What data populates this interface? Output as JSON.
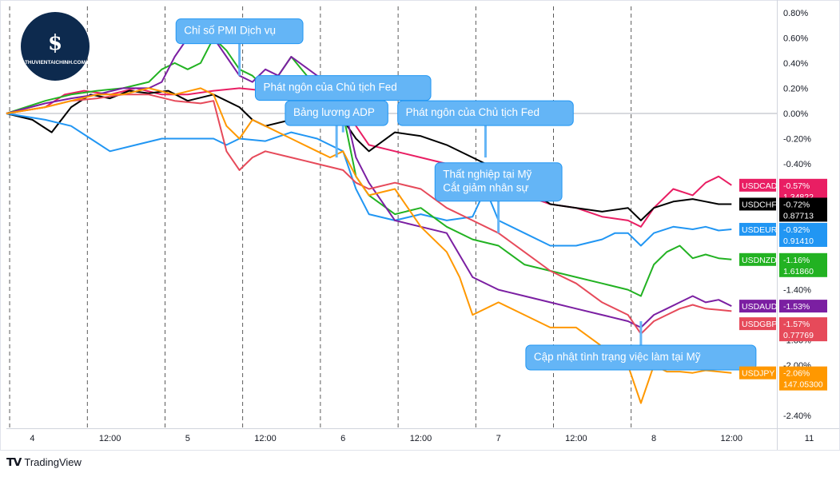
{
  "brand": {
    "footer_label": "TradingView",
    "watermark_text": "THUVIENTAICHINH.COM",
    "watermark_glyph": "$"
  },
  "chart_data": {
    "type": "line",
    "title": "",
    "xlabel": "",
    "ylabel": "",
    "y_unit": "%",
    "ylim": [
      -2.5,
      0.85
    ],
    "y_ticks": [
      "0.80%",
      "0.60%",
      "0.40%",
      "0.20%",
      "0.00%",
      "-0.20%",
      "-0.40%",
      "-1.40%",
      "-1.80%",
      "-2.00%",
      "-2.40%"
    ],
    "y_tick_values": [
      0.8,
      0.6,
      0.4,
      0.2,
      0.0,
      -0.2,
      -0.4,
      -1.4,
      -1.8,
      -2.0,
      -2.4
    ],
    "x_ticks": [
      "4",
      "12:00",
      "5",
      "12:00",
      "6",
      "12:00",
      "7",
      "12:00",
      "8",
      "12:00",
      "11"
    ],
    "x_tick_times": [
      0,
      12,
      24,
      36,
      48,
      60,
      72,
      84,
      96,
      108,
      120
    ],
    "x_unit": "hours since start of day 4",
    "xlim": [
      -4,
      115
    ],
    "zero_line": 0,
    "session_separators": [
      -3.5,
      8.5,
      20.5,
      32.5,
      44.5,
      56.5,
      68.5,
      80.5,
      92.5
    ],
    "series": [
      {
        "name": "USDCAD",
        "color": "#e91e63",
        "last_pct": "-0.57%",
        "last_price": "1.34822",
        "points": [
          [
            -4,
            0.0
          ],
          [
            2,
            0.05
          ],
          [
            5,
            0.15
          ],
          [
            8,
            0.18
          ],
          [
            12,
            0.15
          ],
          [
            16,
            0.2
          ],
          [
            20,
            0.15
          ],
          [
            24,
            0.15
          ],
          [
            28,
            0.18
          ],
          [
            32,
            0.2
          ],
          [
            36,
            0.18
          ],
          [
            40,
            0.12
          ],
          [
            44,
            0.2
          ],
          [
            46,
            0.15
          ],
          [
            48,
            0.05
          ],
          [
            50,
            -0.1
          ],
          [
            52,
            -0.25
          ],
          [
            56,
            -0.3
          ],
          [
            60,
            -0.35
          ],
          [
            64,
            -0.4
          ],
          [
            68,
            -0.45
          ],
          [
            72,
            -0.55
          ],
          [
            76,
            -0.65
          ],
          [
            80,
            -0.72
          ],
          [
            84,
            -0.75
          ],
          [
            88,
            -0.82
          ],
          [
            92,
            -0.85
          ],
          [
            94,
            -0.9
          ],
          [
            96,
            -0.75
          ],
          [
            99,
            -0.6
          ],
          [
            102,
            -0.65
          ],
          [
            104,
            -0.55
          ],
          [
            106,
            -0.5
          ],
          [
            108,
            -0.57
          ]
        ]
      },
      {
        "name": "USDCHF",
        "color": "#000000",
        "last_pct": "-0.72%",
        "last_price": "0.87713",
        "points": [
          [
            -4,
            0.0
          ],
          [
            0,
            -0.05
          ],
          [
            3,
            -0.15
          ],
          [
            6,
            0.05
          ],
          [
            9,
            0.15
          ],
          [
            12,
            0.12
          ],
          [
            15,
            0.18
          ],
          [
            18,
            0.16
          ],
          [
            21,
            0.18
          ],
          [
            24,
            0.1
          ],
          [
            28,
            0.15
          ],
          [
            32,
            0.05
          ],
          [
            34,
            -0.05
          ],
          [
            36,
            -0.1
          ],
          [
            40,
            -0.05
          ],
          [
            44,
            0.0
          ],
          [
            46,
            0.1
          ],
          [
            48,
            -0.05
          ],
          [
            50,
            -0.2
          ],
          [
            52,
            -0.3
          ],
          [
            56,
            -0.15
          ],
          [
            60,
            -0.18
          ],
          [
            64,
            -0.25
          ],
          [
            68,
            -0.35
          ],
          [
            72,
            -0.45
          ],
          [
            76,
            -0.55
          ],
          [
            78,
            -0.65
          ],
          [
            80,
            -0.72
          ],
          [
            84,
            -0.75
          ],
          [
            88,
            -0.78
          ],
          [
            92,
            -0.75
          ],
          [
            94,
            -0.85
          ],
          [
            96,
            -0.75
          ],
          [
            99,
            -0.7
          ],
          [
            102,
            -0.68
          ],
          [
            104,
            -0.7
          ],
          [
            106,
            -0.72
          ],
          [
            108,
            -0.72
          ]
        ]
      },
      {
        "name": "USDEUR",
        "color": "#2196f3",
        "last_pct": "-0.92%",
        "last_price": "0.91410",
        "points": [
          [
            -4,
            0.0
          ],
          [
            2,
            -0.05
          ],
          [
            6,
            -0.1
          ],
          [
            9,
            -0.2
          ],
          [
            12,
            -0.3
          ],
          [
            16,
            -0.25
          ],
          [
            20,
            -0.2
          ],
          [
            24,
            -0.2
          ],
          [
            28,
            -0.2
          ],
          [
            30,
            -0.25
          ],
          [
            32,
            -0.2
          ],
          [
            36,
            -0.22
          ],
          [
            40,
            -0.15
          ],
          [
            44,
            -0.2
          ],
          [
            48,
            -0.3
          ],
          [
            50,
            -0.6
          ],
          [
            52,
            -0.8
          ],
          [
            56,
            -0.85
          ],
          [
            60,
            -0.8
          ],
          [
            64,
            -0.85
          ],
          [
            68,
            -0.82
          ],
          [
            70,
            -0.6
          ],
          [
            72,
            -0.85
          ],
          [
            76,
            -0.95
          ],
          [
            80,
            -1.05
          ],
          [
            84,
            -1.05
          ],
          [
            88,
            -1.0
          ],
          [
            90,
            -0.95
          ],
          [
            92,
            -0.95
          ],
          [
            94,
            -1.05
          ],
          [
            96,
            -0.95
          ],
          [
            99,
            -0.9
          ],
          [
            102,
            -0.92
          ],
          [
            104,
            -0.9
          ],
          [
            106,
            -0.93
          ],
          [
            108,
            -0.92
          ]
        ]
      },
      {
        "name": "USDNZD",
        "color": "#22b222",
        "last_pct": "-1.16%",
        "last_price": "1.61860",
        "points": [
          [
            -4,
            0.0
          ],
          [
            2,
            0.1
          ],
          [
            6,
            0.15
          ],
          [
            10,
            0.18
          ],
          [
            14,
            0.2
          ],
          [
            18,
            0.25
          ],
          [
            20,
            0.35
          ],
          [
            22,
            0.4
          ],
          [
            24,
            0.35
          ],
          [
            26,
            0.4
          ],
          [
            28,
            0.6
          ],
          [
            30,
            0.5
          ],
          [
            32,
            0.35
          ],
          [
            34,
            0.3
          ],
          [
            36,
            0.2
          ],
          [
            38,
            0.3
          ],
          [
            40,
            0.45
          ],
          [
            44,
            0.2
          ],
          [
            46,
            0.15
          ],
          [
            48,
            0.0
          ],
          [
            50,
            -0.5
          ],
          [
            52,
            -0.65
          ],
          [
            56,
            -0.8
          ],
          [
            60,
            -0.75
          ],
          [
            64,
            -0.9
          ],
          [
            68,
            -1.0
          ],
          [
            72,
            -1.05
          ],
          [
            76,
            -1.2
          ],
          [
            80,
            -1.25
          ],
          [
            84,
            -1.3
          ],
          [
            88,
            -1.35
          ],
          [
            92,
            -1.4
          ],
          [
            94,
            -1.45
          ],
          [
            96,
            -1.2
          ],
          [
            98,
            -1.1
          ],
          [
            100,
            -1.05
          ],
          [
            102,
            -1.15
          ],
          [
            104,
            -1.12
          ],
          [
            106,
            -1.15
          ],
          [
            108,
            -1.16
          ]
        ]
      },
      {
        "name": "USDAUD",
        "color": "#7b1fa2",
        "last_pct": "-1.53%",
        "last_price": "",
        "points": [
          [
            -4,
            0.0
          ],
          [
            2,
            0.08
          ],
          [
            6,
            0.12
          ],
          [
            10,
            0.15
          ],
          [
            14,
            0.2
          ],
          [
            18,
            0.2
          ],
          [
            20,
            0.25
          ],
          [
            22,
            0.45
          ],
          [
            24,
            0.6
          ],
          [
            26,
            0.7
          ],
          [
            28,
            0.6
          ],
          [
            30,
            0.45
          ],
          [
            32,
            0.3
          ],
          [
            34,
            0.25
          ],
          [
            36,
            0.35
          ],
          [
            38,
            0.3
          ],
          [
            40,
            0.45
          ],
          [
            44,
            0.3
          ],
          [
            46,
            0.25
          ],
          [
            48,
            0.1
          ],
          [
            50,
            -0.35
          ],
          [
            52,
            -0.55
          ],
          [
            56,
            -0.85
          ],
          [
            60,
            -0.9
          ],
          [
            64,
            -0.95
          ],
          [
            68,
            -1.3
          ],
          [
            72,
            -1.4
          ],
          [
            76,
            -1.45
          ],
          [
            80,
            -1.5
          ],
          [
            84,
            -1.55
          ],
          [
            88,
            -1.6
          ],
          [
            92,
            -1.65
          ],
          [
            94,
            -1.7
          ],
          [
            96,
            -1.6
          ],
          [
            98,
            -1.55
          ],
          [
            100,
            -1.5
          ],
          [
            102,
            -1.45
          ],
          [
            104,
            -1.5
          ],
          [
            106,
            -1.48
          ],
          [
            108,
            -1.53
          ]
        ]
      },
      {
        "name": "USDGBP",
        "color": "#e64a5a",
        "last_pct": "-1.57%",
        "last_price": "0.77769",
        "points": [
          [
            -4,
            0.0
          ],
          [
            2,
            0.05
          ],
          [
            6,
            0.1
          ],
          [
            10,
            0.12
          ],
          [
            14,
            0.15
          ],
          [
            18,
            0.15
          ],
          [
            22,
            0.1
          ],
          [
            26,
            0.08
          ],
          [
            28,
            0.1
          ],
          [
            30,
            -0.3
          ],
          [
            32,
            -0.45
          ],
          [
            34,
            -0.35
          ],
          [
            36,
            -0.3
          ],
          [
            40,
            -0.35
          ],
          [
            44,
            -0.4
          ],
          [
            48,
            -0.45
          ],
          [
            50,
            -0.55
          ],
          [
            52,
            -0.6
          ],
          [
            56,
            -0.55
          ],
          [
            60,
            -0.6
          ],
          [
            64,
            -0.75
          ],
          [
            68,
            -0.85
          ],
          [
            72,
            -0.95
          ],
          [
            76,
            -1.1
          ],
          [
            80,
            -1.25
          ],
          [
            84,
            -1.35
          ],
          [
            88,
            -1.5
          ],
          [
            92,
            -1.6
          ],
          [
            94,
            -1.75
          ],
          [
            96,
            -1.65
          ],
          [
            98,
            -1.6
          ],
          [
            100,
            -1.55
          ],
          [
            102,
            -1.52
          ],
          [
            104,
            -1.55
          ],
          [
            106,
            -1.56
          ],
          [
            108,
            -1.57
          ]
        ]
      },
      {
        "name": "USDJPY",
        "color": "#ff9800",
        "last_pct": "-2.06%",
        "last_price": "147.05300",
        "points": [
          [
            -4,
            0.0
          ],
          [
            2,
            0.05
          ],
          [
            6,
            0.1
          ],
          [
            10,
            0.15
          ],
          [
            14,
            0.15
          ],
          [
            18,
            0.2
          ],
          [
            22,
            0.15
          ],
          [
            26,
            0.2
          ],
          [
            28,
            0.15
          ],
          [
            30,
            -0.1
          ],
          [
            32,
            -0.2
          ],
          [
            34,
            -0.05
          ],
          [
            36,
            -0.1
          ],
          [
            40,
            -0.2
          ],
          [
            44,
            -0.3
          ],
          [
            46,
            -0.35
          ],
          [
            48,
            -0.3
          ],
          [
            50,
            -0.5
          ],
          [
            52,
            -0.65
          ],
          [
            56,
            -0.6
          ],
          [
            60,
            -0.9
          ],
          [
            64,
            -1.1
          ],
          [
            66,
            -1.3
          ],
          [
            68,
            -1.6
          ],
          [
            72,
            -1.5
          ],
          [
            76,
            -1.6
          ],
          [
            80,
            -1.7
          ],
          [
            84,
            -1.7
          ],
          [
            88,
            -1.85
          ],
          [
            92,
            -2.0
          ],
          [
            94,
            -2.3
          ],
          [
            96,
            -2.0
          ],
          [
            98,
            -2.05
          ],
          [
            100,
            -2.05
          ],
          [
            102,
            -2.06
          ],
          [
            104,
            -2.04
          ],
          [
            106,
            -2.05
          ],
          [
            108,
            -2.06
          ]
        ]
      }
    ],
    "annotations": [
      {
        "text": [
          "Chỉ số PMI Dịch vụ"
        ],
        "x": 32,
        "y": 0.3
      },
      {
        "text": [
          "Phát ngôn của Chủ tịch Fed"
        ],
        "x": 48,
        "y": -0.15
      },
      {
        "text": [
          "Phát ngôn của Chủ tịch Fed"
        ],
        "x": 70,
        "y": -0.35
      },
      {
        "text": [
          "Bảng lương ADP"
        ],
        "x": 47,
        "y": -0.35
      },
      {
        "text": [
          "Thất nghiệp tại Mỹ",
          "Cắt giảm nhân sự"
        ],
        "x": 72,
        "y": -0.95
      },
      {
        "text": [
          "Cập nhật tình trạng việc làm tại Mỹ"
        ],
        "x": 94,
        "y": -1.65
      }
    ]
  }
}
